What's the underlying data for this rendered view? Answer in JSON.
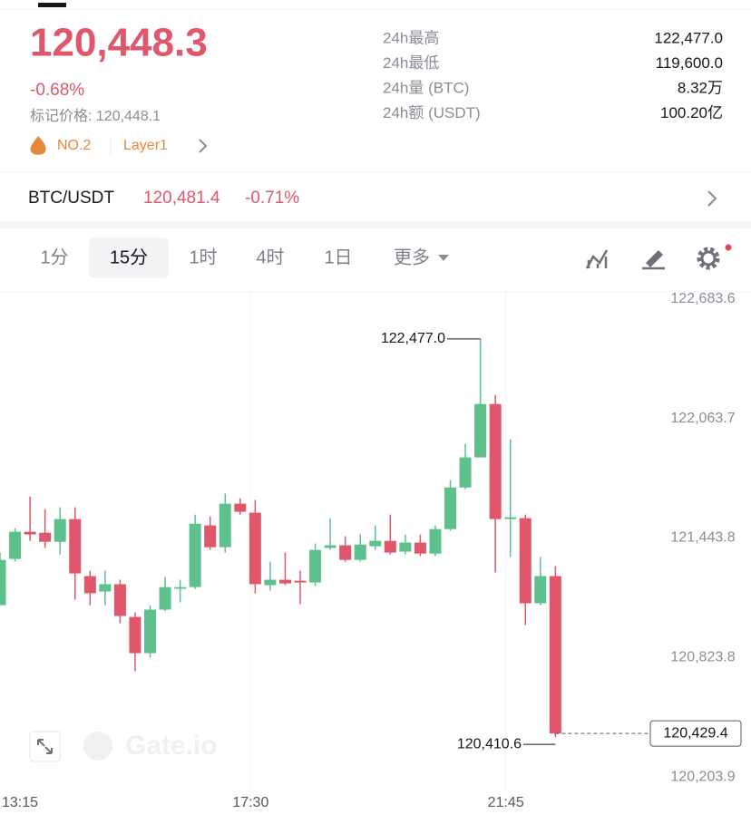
{
  "header": {
    "price": "120,448.3",
    "change": "-0.68%",
    "mark_price": "标记价格: 120,448.1",
    "rank": "NO.2",
    "sector": "Layer1"
  },
  "stats": [
    {
      "label": "24h最高",
      "value": "122,477.0"
    },
    {
      "label": "24h最低",
      "value": "119,600.0"
    },
    {
      "label": "24h量 (BTC)",
      "value": "8.32万"
    },
    {
      "label": "24h额 (USDT)",
      "value": "100.20亿"
    }
  ],
  "pair": {
    "symbol": "BTC/USDT",
    "price": "120,481.4",
    "change": "-0.71%"
  },
  "intervals": [
    "1分",
    "15分",
    "1时",
    "4时",
    "1日",
    "更多"
  ],
  "chart_data": {
    "type": "candlestick",
    "up_color": "#5ec08c",
    "down_color": "#e0566a",
    "watermark": "Gate.io",
    "categories": [
      "13:15",
      null,
      null,
      null,
      null,
      null,
      null,
      null,
      null,
      null,
      null,
      null,
      null,
      null,
      null,
      null,
      null,
      "17:30",
      null,
      null,
      null,
      null,
      null,
      null,
      null,
      null,
      null,
      null,
      null,
      null,
      null,
      null,
      null,
      null,
      "21:45",
      null,
      null,
      null
    ],
    "open": [
      121095,
      121335,
      121476,
      121471,
      121424,
      121542,
      121246,
      121166,
      121204,
      121034,
      120846,
      121072,
      121180,
      121189,
      121509,
      121396,
      121622,
      121575,
      121199,
      121227,
      121222,
      121213,
      121392,
      121406,
      121330,
      121401,
      121429,
      121373,
      121420,
      121363,
      121490,
      121706,
      121862,
      122139,
      121542,
      121547,
      121105,
      121246
    ],
    "high": [
      121368,
      121495,
      121659,
      121594,
      121603,
      121603,
      121274,
      121274,
      121227,
      121058,
      121095,
      121241,
      121227,
      121565,
      121556,
      121674,
      121650,
      121641,
      121321,
      121368,
      121274,
      121415,
      121547,
      121453,
      121462,
      121509,
      121565,
      121462,
      121462,
      121509,
      121744,
      121932,
      122477,
      122186,
      121956,
      121565,
      121345,
      121298
    ],
    "low": [
      121095,
      121321,
      121429,
      121392,
      121359,
      121124,
      121095,
      121095,
      121001,
      120752,
      120823,
      121063,
      121110,
      121180,
      121382,
      121368,
      121565,
      121157,
      121171,
      121199,
      121100,
      121194,
      121382,
      121321,
      121321,
      121382,
      121359,
      121359,
      121349,
      121349,
      121481,
      121697,
      121862,
      121265,
      121345,
      120992,
      121095,
      120410.6
    ],
    "close": [
      121330,
      121476,
      121462,
      121424,
      121542,
      121260,
      121157,
      121204,
      121039,
      120846,
      121072,
      121189,
      121189,
      121518,
      121396,
      121622,
      121580,
      121204,
      121227,
      121208,
      121213,
      121382,
      121406,
      121330,
      121410,
      121429,
      121368,
      121420,
      121363,
      121490,
      121706,
      121862,
      122139,
      121542,
      121551,
      121105,
      121246,
      120429.4
    ],
    "ylim": [
      120143,
      122721
    ],
    "yticks": [
      {
        "value": 122683.6,
        "label": "122,683.6"
      },
      {
        "value": 122063.7,
        "label": "122,063.7"
      },
      {
        "value": 121443.8,
        "label": "121,443.8"
      },
      {
        "value": 120823.8,
        "label": "120,823.8"
      },
      {
        "value": 120203.9,
        "label": "120,203.9"
      }
    ],
    "max_label": {
      "value": 122477,
      "label": "122,477.0"
    },
    "min_label": {
      "value": 120410.6,
      "label": "120,410.6"
    },
    "last_price": {
      "value": 120429.4,
      "label": "120,429.4"
    }
  }
}
